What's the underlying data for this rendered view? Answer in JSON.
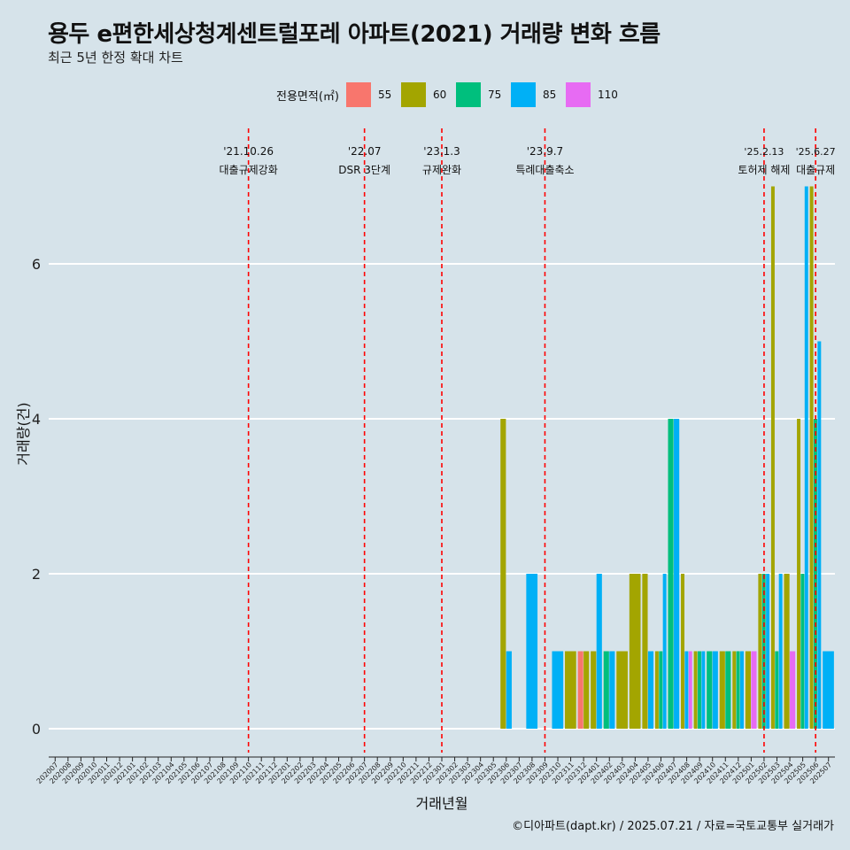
{
  "title": "용두 e편한세상청계센트럴포레 아파트(2021) 거래량 변화 흐름",
  "subtitle": "최근 5년 한정 확대 차트",
  "caption": "©디아파트(dapt.kr) / 2025.07.21 / 자료=국토교통부 실거래가",
  "legend": {
    "title": "전용면적(㎡)",
    "items": [
      {
        "label": "55",
        "color": "#f8766d"
      },
      {
        "label": "60",
        "color": "#a3a500"
      },
      {
        "label": "75",
        "color": "#00bf7d"
      },
      {
        "label": "85",
        "color": "#00b0f6"
      },
      {
        "label": "110",
        "color": "#e76bf3"
      }
    ]
  },
  "chart_data": {
    "type": "bar",
    "xlabel": "거래년월",
    "ylabel": "거래량(건)",
    "ylim": [
      0,
      7
    ],
    "yticks": [
      0,
      2,
      4,
      6
    ],
    "grid": "horizontal",
    "legend_position": "top",
    "categories": [
      "202007",
      "202008",
      "202009",
      "202010",
      "202011",
      "202012",
      "202101",
      "202102",
      "202103",
      "202104",
      "202105",
      "202106",
      "202107",
      "202108",
      "202109",
      "202110",
      "202111",
      "202112",
      "202201",
      "202202",
      "202203",
      "202204",
      "202205",
      "202206",
      "202207",
      "202208",
      "202209",
      "202210",
      "202211",
      "202212",
      "202301",
      "202302",
      "202303",
      "202304",
      "202305",
      "202306",
      "202307",
      "202308",
      "202309",
      "202310",
      "202311",
      "202312",
      "202401",
      "202402",
      "202403",
      "202404",
      "202405",
      "202406",
      "202407",
      "202408",
      "202409",
      "202410",
      "202411",
      "202412",
      "202501",
      "202502",
      "202503",
      "202504",
      "202505",
      "202506",
      "202507"
    ],
    "series": [
      {
        "name": "55",
        "color": "#f8766d",
        "values": {
          "202312": 1
        }
      },
      {
        "name": "60",
        "color": "#a3a500",
        "values": {
          "202306": 4,
          "202311": 1,
          "202312": 1,
          "202401": 1,
          "202403": 1,
          "202404": 2,
          "202405": 2,
          "202406": 1,
          "202408": 2,
          "202409": 1,
          "202411": 1,
          "202412": 1,
          "202501": 1,
          "202502": 2,
          "202503": 7,
          "202504": 2,
          "202505": 4,
          "202506": 7
        }
      },
      {
        "name": "75",
        "color": "#00bf7d",
        "values": {
          "202402": 1,
          "202406": 1,
          "202407": 4,
          "202409": 1,
          "202410": 1,
          "202411": 1,
          "202412": 1,
          "202502": 2,
          "202503": 1,
          "202505": 2,
          "202506": 4
        }
      },
      {
        "name": "85",
        "color": "#00b0f6",
        "values": {
          "202306": 1,
          "202308": 2,
          "202310": 1,
          "202401": 2,
          "202402": 1,
          "202405": 1,
          "202406": 2,
          "202407": 4,
          "202408": 1,
          "202409": 1,
          "202410": 1,
          "202412": 1,
          "202502": 2,
          "202503": 2,
          "202505": 7,
          "202506": 5,
          "202507": 1
        }
      },
      {
        "name": "110",
        "color": "#e76bf3",
        "values": {
          "202408": 1,
          "202501": 1,
          "202504": 1
        }
      }
    ],
    "annotations": [
      {
        "date_label": "'21.10.26",
        "text": "대출규제강화",
        "at": "202110"
      },
      {
        "date_label": "'22.07",
        "text": "DSR 3단계",
        "at": "202207"
      },
      {
        "date_label": "'23.1.3",
        "text": "규제완화",
        "at": "202301"
      },
      {
        "date_label": "'23.9.7",
        "text": "특례대출축소",
        "at": "202309"
      },
      {
        "date_label": "'25.2.13",
        "text": "토허제 해제",
        "at": "202502"
      },
      {
        "date_label": "'25.6.27",
        "text": "대출규제",
        "at": "202506"
      }
    ],
    "annotation_color": "#ff0000"
  }
}
